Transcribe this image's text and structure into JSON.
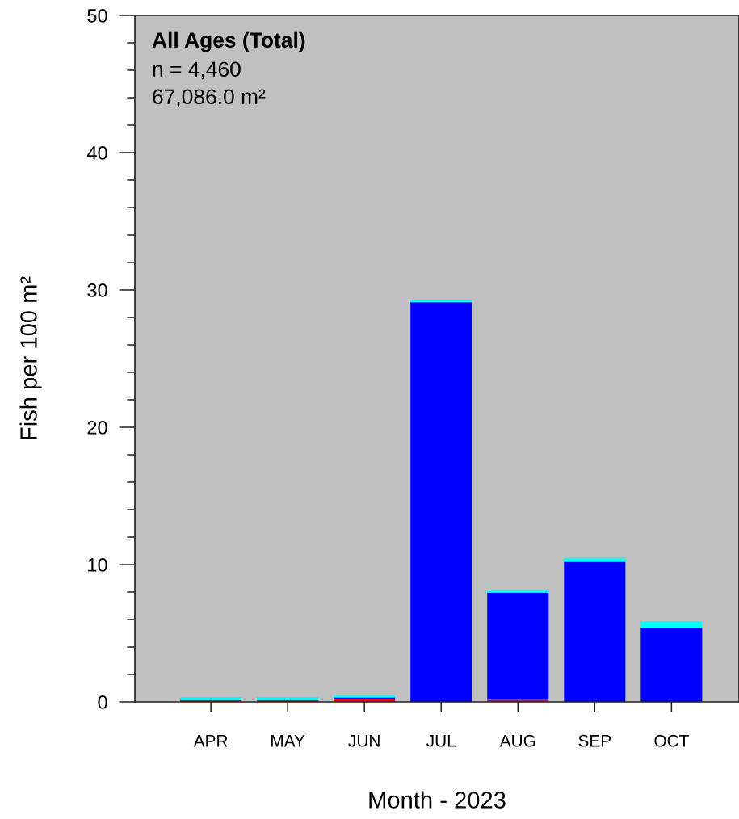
{
  "chart_data": {
    "type": "bar",
    "stacked": true,
    "title": "All Ages (Total)",
    "annotations": [
      "n = 4,460",
      "67,086.0 m²"
    ],
    "xlabel": "Month - 2023",
    "ylabel": "Fish per 100 m²",
    "categories": [
      "APR",
      "MAY",
      "JUN",
      "JUL",
      "AUG",
      "SEP",
      "OCT"
    ],
    "series": [
      {
        "color": "#ff0000",
        "values": [
          0.13,
          0.13,
          0.18,
          null,
          0.15,
          null,
          null
        ]
      },
      {
        "color": "#0000ff",
        "values": [
          null,
          null,
          0.14,
          29.1,
          7.8,
          10.2,
          5.4
        ]
      },
      {
        "color": "#00ffff",
        "values": [
          0.22,
          0.22,
          0.16,
          0.16,
          0.18,
          0.29,
          0.47
        ]
      }
    ],
    "ylim": [
      0,
      50
    ],
    "yticks": [
      0,
      {
        "value": 2,
        "label": null
      },
      {
        "value": 4,
        "label": null
      },
      {
        "value": 6,
        "label": null
      },
      {
        "value": 8,
        "label": null
      },
      10,
      {
        "value": 12,
        "label": null
      },
      {
        "value": 14,
        "label": null
      },
      {
        "value": 16,
        "label": null
      },
      {
        "value": 18,
        "label": null
      },
      20,
      {
        "value": 22,
        "label": null
      },
      {
        "value": 24,
        "label": null
      },
      {
        "value": 26,
        "label": null
      },
      {
        "value": 28,
        "label": null
      },
      30,
      {
        "value": 32,
        "label": null
      },
      {
        "value": 34,
        "label": null
      },
      {
        "value": 36,
        "label": null
      },
      {
        "value": 38,
        "label": null
      },
      40,
      {
        "value": 42,
        "label": null
      },
      {
        "value": 44,
        "label": null
      },
      {
        "value": 46,
        "label": null
      },
      {
        "value": 48,
        "label": null
      },
      50
    ],
    "grid": false,
    "legend": false
  }
}
